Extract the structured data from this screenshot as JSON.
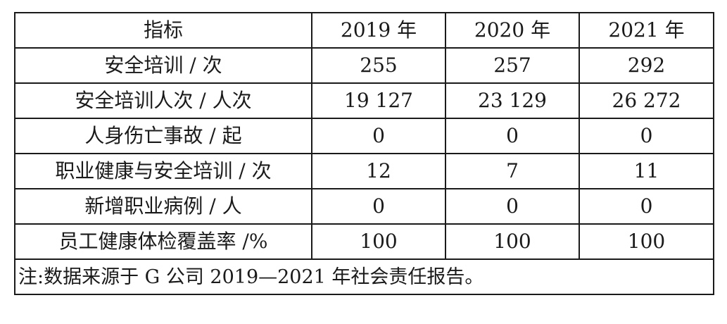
{
  "table": {
    "headers": [
      "指标",
      "2019 年",
      "2020 年",
      "2021 年"
    ],
    "rows": [
      [
        "安全培训 / 次",
        "255",
        "257",
        "292"
      ],
      [
        "安全培训人次 / 人次",
        "19 127",
        "23 129",
        "26 272"
      ],
      [
        "人身伤亡事故 / 起",
        "0",
        "0",
        "0"
      ],
      [
        "职业健康与安全培训 / 次",
        "12",
        "7",
        "11"
      ],
      [
        "新增职业病例 / 人",
        "0",
        "0",
        "0"
      ],
      [
        "员工健康体检覆盖率 /%",
        "100",
        "100",
        "100"
      ]
    ],
    "note": "注:数据来源于 G 公司 2019—2021 年社会责任报告。"
  }
}
